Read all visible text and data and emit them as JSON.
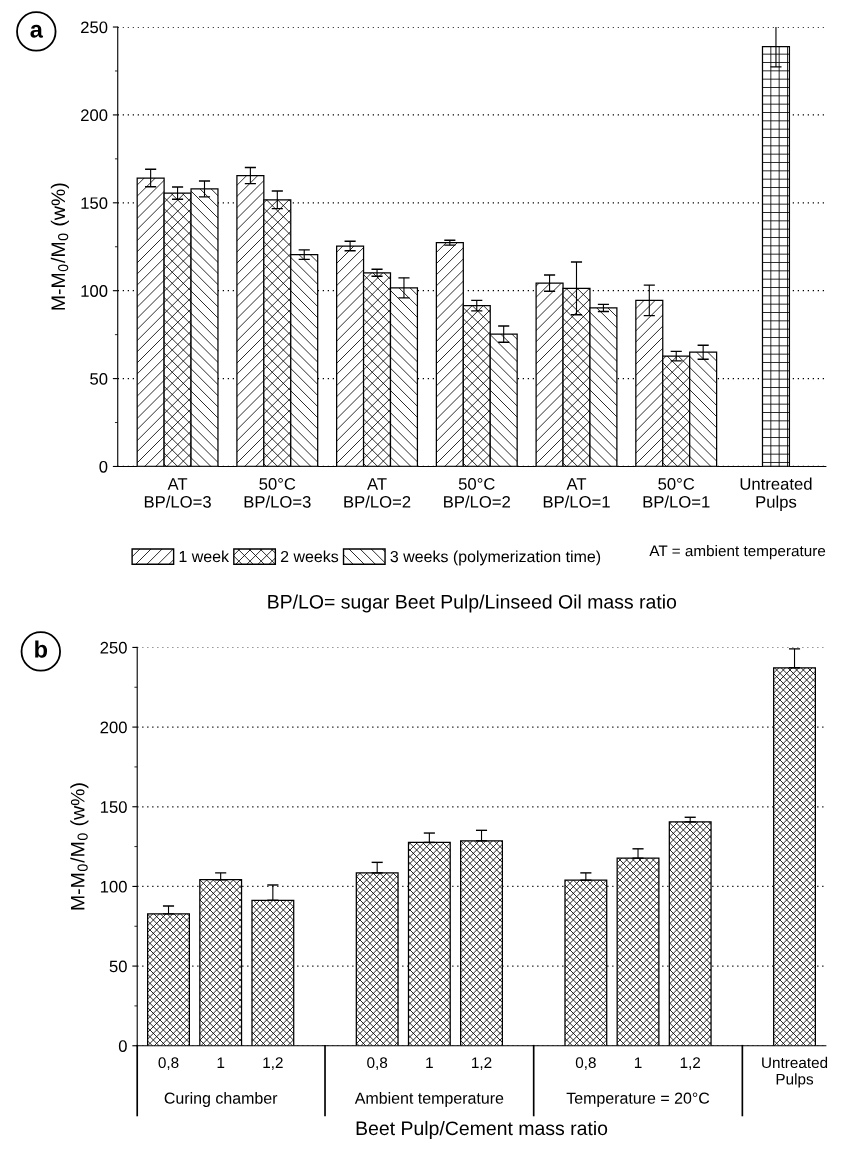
{
  "chart_data": [
    {
      "type": "bar",
      "categories": [
        "AT\nBP/LO=3",
        "50°C\nBP/LO=3",
        "AT\nBP/LO=2",
        "50°C\nBP/LO=2",
        "AT\nBP/LO=1",
        "50°C\nBP/LO=1",
        "Untreated\nPulps"
      ],
      "series": [
        {
          "name": "1 week",
          "color": "#000000",
          "values": [
            164.1,
            165.5,
            125.4,
            127.3,
            104.3,
            94.5,
            null
          ],
          "errors": [
            5,
            4.6,
            2.7,
            1.4,
            4.6,
            8.7,
            null
          ]
        },
        {
          "name": "2 weeks",
          "color": "#000000",
          "values": [
            155.5,
            151.7,
            110.2,
            91.5,
            101.3,
            62.8,
            null
          ],
          "errors": [
            3.5,
            5,
            2,
            3,
            15,
            2.7,
            null
          ]
        },
        {
          "name": "3 weeks (polymerization time)",
          "color": "#000000",
          "values": [
            157.9,
            120.5,
            101.6,
            75.3,
            90.2,
            65,
            null
          ],
          "errors": [
            4.5,
            2.7,
            5.7,
            4.6,
            2,
            4,
            null
          ]
        },
        {
          "color": "#000000",
          "values": [
            null,
            null,
            null,
            null,
            null,
            null,
            238.9
          ],
          "errors": [
            null,
            null,
            null,
            null,
            null,
            null,
            11.6
          ]
        }
      ],
      "xlabel": "BP/LO= sugar Beet Pulp/Linseed Oil mass ratio",
      "ylabel": "M-M$_{0}$/M$_{0}$ (w%)",
      "ylim": [
        0,
        250
      ],
      "yticks": [
        0,
        50,
        100,
        150,
        200,
        250
      ],
      "grid": "y",
      "legend": "bottom",
      "annotations": [
        "a",
        "AT = ambient temperature"
      ]
    },
    {
      "type": "bar",
      "categories": [
        "0,8",
        "1",
        "1,2",
        null,
        "0,8",
        "1",
        "1,2",
        null,
        "0,8",
        "1",
        "1,2",
        null,
        "Untreated\nPulps"
      ],
      "series": [
        {
          "color": "#000000",
          "values": [
            82.8,
            104.2,
            91.3,
            null,
            108.5,
            127.6,
            128.6,
            null,
            103.9,
            117.7,
            140.5,
            null,
            237.2
          ],
          "errors": [
            [
              82.8,
              87.7
            ],
            [
              104.2,
              108.5
            ],
            [
              91.3,
              100.9
            ],
            null,
            [
              108.5,
              115.1
            ],
            [
              127.6,
              133.5
            ],
            [
              128.6,
              135.2
            ],
            null,
            [
              103.9,
              108.5
            ],
            [
              117.7,
              123.6
            ],
            [
              140.5,
              143.4
            ],
            null,
            [
              237.2,
              249.1
            ]
          ]
        }
      ],
      "xlabel": "Beet Pulp/Cement mass ratio",
      "ylabel": "M-M$_{0}$/M$_{0}$ (w%)",
      "ylim": [
        0,
        250
      ],
      "yticks": [
        0,
        50,
        100,
        150,
        200,
        250
      ],
      "grid": "y",
      "annotations": [
        "b",
        "Curing chamber",
        "Ambient temperature",
        "Temperature = 20°C"
      ]
    }
  ]
}
